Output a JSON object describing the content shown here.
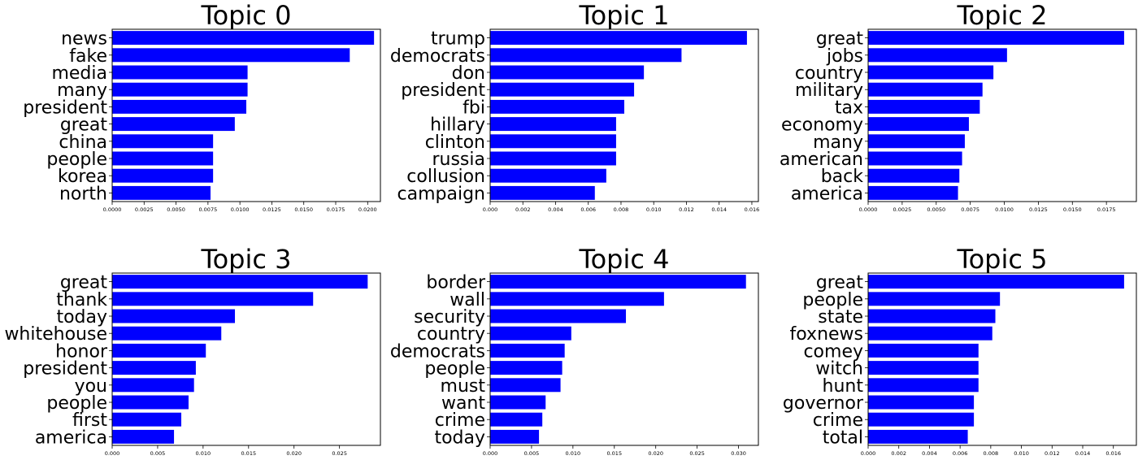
{
  "chart_data": [
    {
      "type": "bar",
      "orientation": "horizontal",
      "title": "Topic 0",
      "categories": [
        "news",
        "fake",
        "media",
        "many",
        "president",
        "great",
        "china",
        "people",
        "korea",
        "north"
      ],
      "values": [
        0.0205,
        0.0186,
        0.0106,
        0.0106,
        0.0105,
        0.0096,
        0.0079,
        0.0079,
        0.0079,
        0.0077
      ],
      "xlim": [
        0,
        0.021
      ],
      "xticks": [
        "0.0000",
        "0.0025",
        "0.0050",
        "0.0075",
        "0.0100",
        "0.0125",
        "0.0150",
        "0.0175",
        "0.0200"
      ],
      "xtick_values": [
        0,
        0.0025,
        0.005,
        0.0075,
        0.01,
        0.0125,
        0.015,
        0.0175,
        0.02
      ],
      "color": "#0000ff"
    },
    {
      "type": "bar",
      "orientation": "horizontal",
      "title": "Topic 1",
      "categories": [
        "trump",
        "democrats",
        "don",
        "president",
        "fbi",
        "hillary",
        "clinton",
        "russia",
        "collusion",
        "campaign"
      ],
      "values": [
        0.0157,
        0.0117,
        0.0094,
        0.0088,
        0.0082,
        0.0077,
        0.0077,
        0.0077,
        0.0071,
        0.0064
      ],
      "xlim": [
        0,
        0.0164
      ],
      "xticks": [
        "0.000",
        "0.002",
        "0.004",
        "0.006",
        "0.008",
        "0.010",
        "0.012",
        "0.014",
        "0.016"
      ],
      "xtick_values": [
        0,
        0.002,
        0.004,
        0.006,
        0.008,
        0.01,
        0.012,
        0.014,
        0.016
      ],
      "color": "#0000ff"
    },
    {
      "type": "bar",
      "orientation": "horizontal",
      "title": "Topic 2",
      "categories": [
        "great",
        "jobs",
        "country",
        "military",
        "tax",
        "economy",
        "many",
        "american",
        "back",
        "america"
      ],
      "values": [
        0.0188,
        0.0102,
        0.0092,
        0.0084,
        0.0082,
        0.0074,
        0.0071,
        0.0069,
        0.0067,
        0.0066
      ],
      "xlim": [
        0,
        0.0197
      ],
      "xticks": [
        "0.0000",
        "0.0025",
        "0.0050",
        "0.0075",
        "0.0100",
        "0.0125",
        "0.0150",
        "0.0175"
      ],
      "xtick_values": [
        0,
        0.0025,
        0.005,
        0.0075,
        0.01,
        0.0125,
        0.015,
        0.0175
      ],
      "color": "#0000ff"
    },
    {
      "type": "bar",
      "orientation": "horizontal",
      "title": "Topic 3",
      "categories": [
        "great",
        "thank",
        "today",
        "whitehouse",
        "honor",
        "president",
        "you",
        "people",
        "first",
        "america"
      ],
      "values": [
        0.0281,
        0.0221,
        0.0135,
        0.012,
        0.0103,
        0.0092,
        0.009,
        0.0084,
        0.0076,
        0.0068
      ],
      "xlim": [
        0,
        0.0295
      ],
      "xticks": [
        "0.000",
        "0.005",
        "0.010",
        "0.015",
        "0.020",
        "0.025"
      ],
      "xtick_values": [
        0,
        0.005,
        0.01,
        0.015,
        0.02,
        0.025
      ],
      "color": "#0000ff"
    },
    {
      "type": "bar",
      "orientation": "horizontal",
      "title": "Topic 4",
      "categories": [
        "border",
        "wall",
        "security",
        "country",
        "democrats",
        "people",
        "must",
        "want",
        "crime",
        "today"
      ],
      "values": [
        0.0309,
        0.021,
        0.0164,
        0.0098,
        0.009,
        0.0087,
        0.0085,
        0.0067,
        0.0063,
        0.0059
      ],
      "xlim": [
        0,
        0.0324
      ],
      "xticks": [
        "0.000",
        "0.005",
        "0.010",
        "0.015",
        "0.020",
        "0.025",
        "0.030"
      ],
      "xtick_values": [
        0,
        0.005,
        0.01,
        0.015,
        0.02,
        0.025,
        0.03
      ],
      "color": "#0000ff"
    },
    {
      "type": "bar",
      "orientation": "horizontal",
      "title": "Topic 5",
      "categories": [
        "great",
        "people",
        "state",
        "foxnews",
        "comey",
        "witch",
        "hunt",
        "governor",
        "crime",
        "total"
      ],
      "values": [
        0.0167,
        0.0086,
        0.0083,
        0.0081,
        0.0072,
        0.0072,
        0.0072,
        0.0069,
        0.0069,
        0.0065
      ],
      "xlim": [
        0,
        0.0175
      ],
      "xticks": [
        "0.000",
        "0.002",
        "0.004",
        "0.006",
        "0.008",
        "0.010",
        "0.012",
        "0.014",
        "0.016"
      ],
      "xtick_values": [
        0,
        0.002,
        0.004,
        0.006,
        0.008,
        0.01,
        0.012,
        0.014,
        0.016
      ],
      "color": "#0000ff"
    }
  ]
}
